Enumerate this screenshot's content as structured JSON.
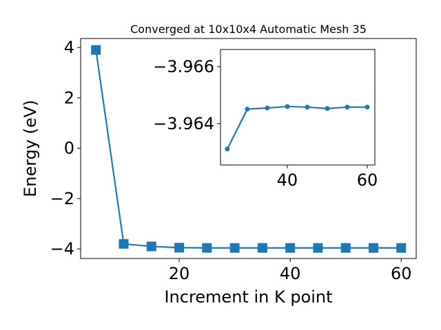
{
  "chart_data": [
    {
      "type": "line",
      "title": "Converged at 10x10x4 Automatic Mesh 35",
      "xlabel": "Increment in K point",
      "ylabel": "Energy (eV)",
      "x": [
        5,
        10,
        15,
        20,
        25,
        30,
        35,
        40,
        45,
        50,
        55,
        60
      ],
      "values": [
        3.9,
        -3.8,
        -3.9,
        -3.95,
        -3.96,
        -3.96,
        -3.96,
        -3.96,
        -3.96,
        -3.96,
        -3.96,
        -3.96
      ],
      "color": "#1f77b4",
      "marker": "square",
      "xlim": [
        2.24,
        62.7
      ],
      "ylim": [
        -4.38,
        4.355
      ],
      "xticks": [
        20,
        40,
        60
      ],
      "yticks": [
        {
          "value": -4,
          "label": "−4"
        },
        {
          "value": -2,
          "label": "−2"
        },
        0,
        2,
        4
      ]
    },
    {
      "type": "line",
      "x": [
        25,
        30,
        35,
        40,
        45,
        50,
        55,
        60
      ],
      "values": [
        -3.96311,
        -3.96451,
        -3.96455,
        -3.9646,
        -3.96458,
        -3.96453,
        -3.96458,
        -3.96458
      ],
      "color": "#1f77b4",
      "marker": "circle",
      "xlim": [
        23.3,
        61.9
      ],
      "ylim": [
        -3.96255,
        -3.9666
      ],
      "xticks": [
        40,
        60
      ],
      "yticks": [
        {
          "value": -3.966,
          "label": "−3.966"
        },
        {
          "value": -3.964,
          "label": "−3.964"
        }
      ]
    }
  ]
}
